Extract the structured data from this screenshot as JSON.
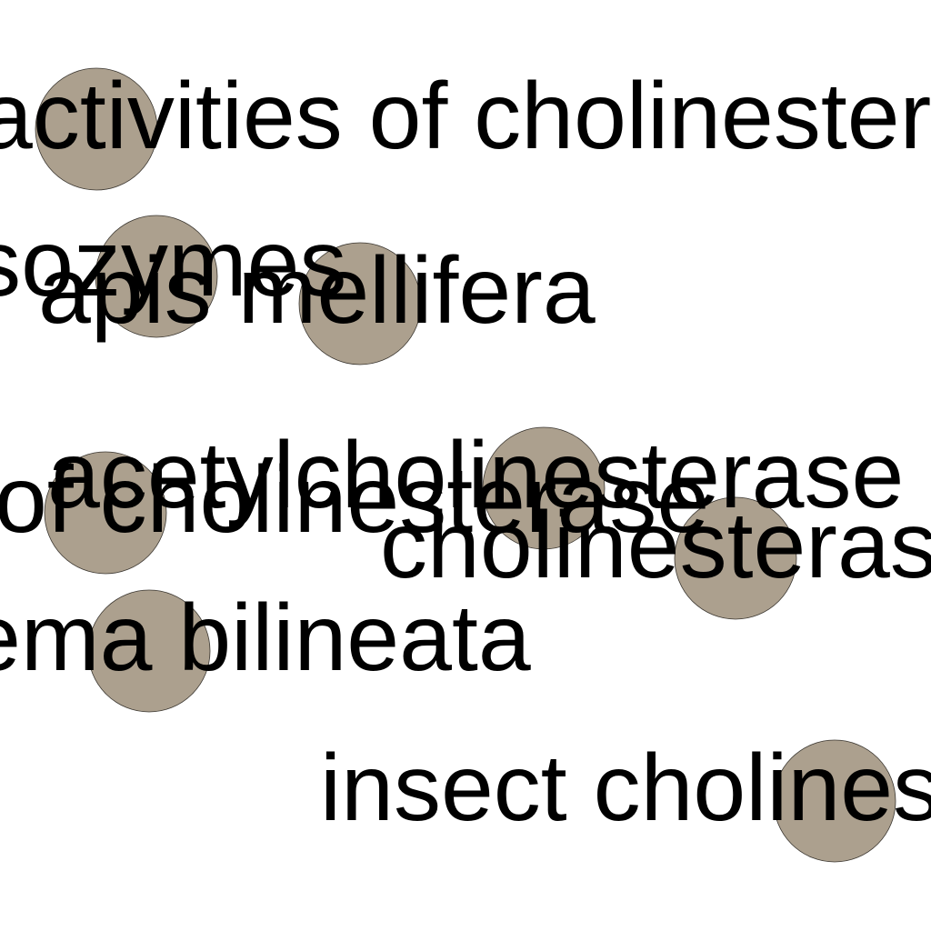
{
  "node_color": "#aca08e",
  "node_stroke": "#3a3630",
  "labels": {
    "l1": "activities of cholinesterases",
    "l2": "isozymes",
    "l3": "apis mellifera",
    "l4": "acetylcholinesterase",
    "l5": "of cholinesterase",
    "l6": "cholinesterase",
    "l7": "lema bilineata",
    "l8": "insect cholinesterase"
  }
}
